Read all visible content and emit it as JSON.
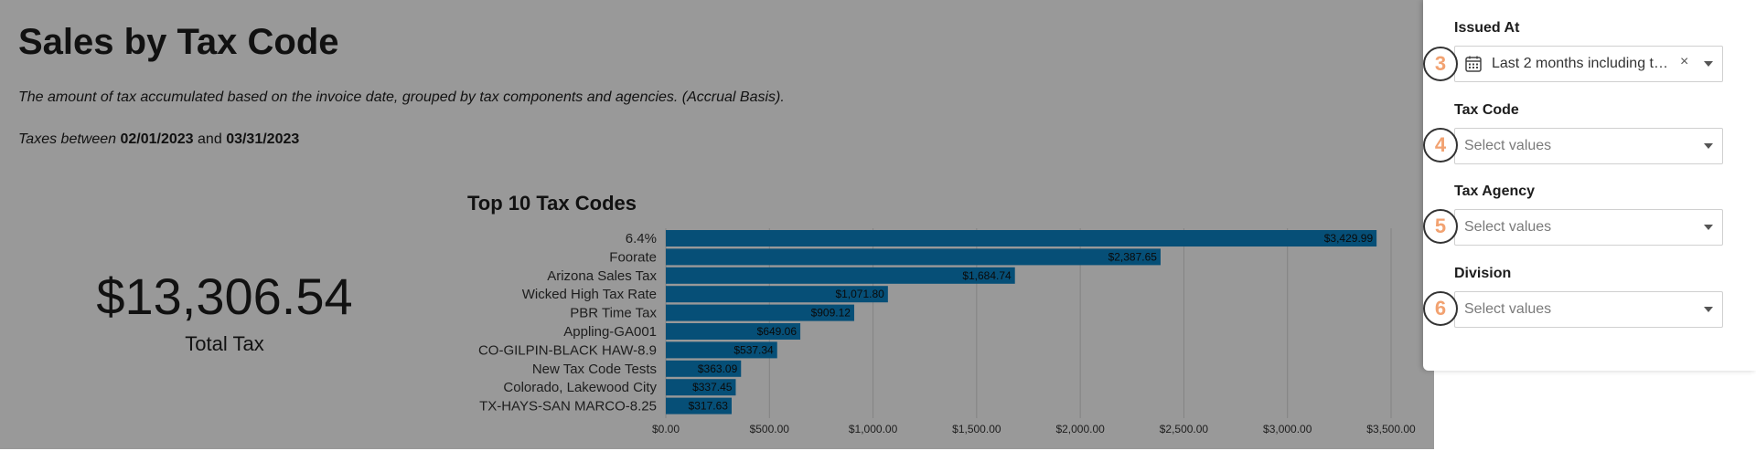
{
  "page": {
    "title": "Sales by Tax Code",
    "description": "The amount of tax accumulated based on the invoice date, grouped by tax components and agencies. (Accrual Basis).",
    "range_prefix": "Taxes between",
    "range_start": "02/01/2023",
    "range_and": "and",
    "range_end": "03/31/2023"
  },
  "kpi": {
    "value": "$13,306.54",
    "label": "Total Tax"
  },
  "chart_data": {
    "type": "bar",
    "orientation": "horizontal",
    "title": "Top 10 Tax Codes",
    "categories": [
      "6.4%",
      "Foorate",
      "Arizona Sales Tax",
      "Wicked High Tax Rate",
      "PBR Time Tax",
      "Appling-GA001",
      "CO-GILPIN-BLACK HAW-8.9",
      "New Tax Code Tests",
      "Colorado, Lakewood City",
      "TX-HAYS-SAN MARCO-8.25"
    ],
    "values": [
      3429.99,
      2387.65,
      1684.74,
      1071.8,
      909.12,
      649.06,
      537.34,
      363.09,
      337.45,
      317.63
    ],
    "data_labels": [
      "$3,429.99",
      "$2,387.65",
      "$1,684.74",
      "$1,071.80",
      "$909.12",
      "$649.06",
      "$537.34",
      "$363.09",
      "$337.45",
      "$317.63"
    ],
    "x_ticks": [
      0,
      500,
      1000,
      1500,
      2000,
      2500,
      3000,
      3500
    ],
    "x_tick_labels": [
      "$0.00",
      "$500.00",
      "$1,000.00",
      "$1,500.00",
      "$2,000.00",
      "$2,500.00",
      "$3,000.00",
      "$3,500.00"
    ],
    "xlim": [
      0,
      3500
    ],
    "grid": true,
    "bar_color": "#0a84c6"
  },
  "filters": [
    {
      "label": "Issued At",
      "value": "Last 2 months including t…",
      "placeholder": "",
      "step": "3"
    },
    {
      "label": "Tax Code",
      "value": "",
      "placeholder": "Select values",
      "step": "4"
    },
    {
      "label": "Tax Agency",
      "value": "",
      "placeholder": "Select values",
      "step": "5"
    },
    {
      "label": "Division",
      "value": "",
      "placeholder": "Select values",
      "step": "6"
    }
  ],
  "icons": {
    "calendar": "calendar-icon",
    "clear": "clear-icon",
    "caret": "chevron-down-icon"
  },
  "colors": {
    "overlay": "#000000",
    "bar": "#0a84c6",
    "step_number": "#f2a271"
  }
}
